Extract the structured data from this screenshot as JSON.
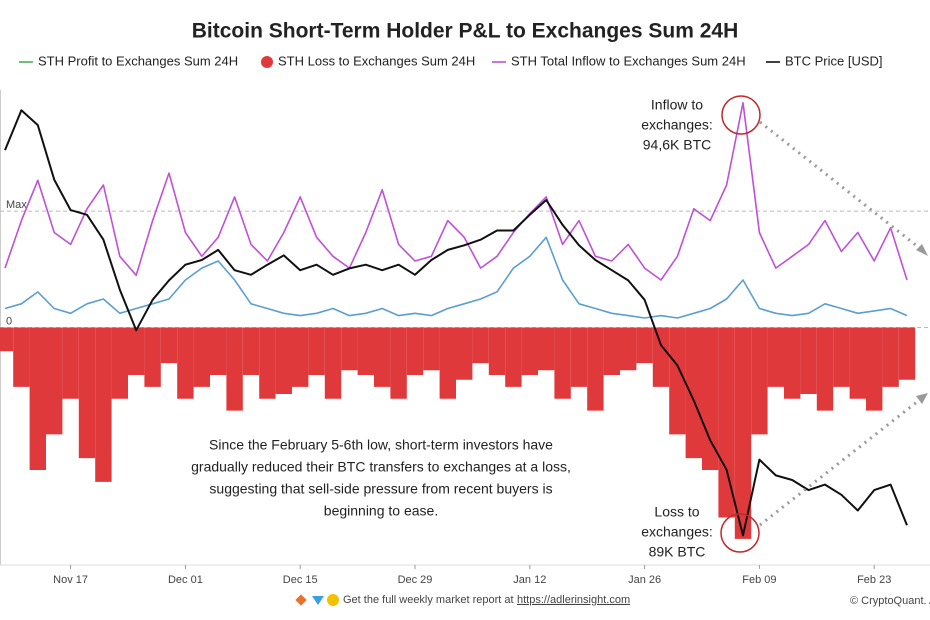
{
  "chart_data": {
    "type": "line",
    "title": "Bitcoin Short-Term Holder P&L to Exchanges Sum 24H",
    "categories": [
      null,
      null,
      null,
      null,
      "Nov 17",
      null,
      null,
      null,
      null,
      null,
      null,
      "Dec 01",
      null,
      null,
      null,
      null,
      null,
      null,
      "Dec 15",
      null,
      null,
      null,
      null,
      null,
      null,
      "Dec 29",
      null,
      null,
      null,
      null,
      null,
      null,
      "Jan 12",
      null,
      null,
      null,
      null,
      null,
      null,
      "Jan 26",
      null,
      null,
      null,
      null,
      null,
      null,
      "Feb 09",
      null,
      null,
      null,
      null,
      null,
      null,
      "Feb 23",
      null,
      null
    ],
    "ylim": [
      -100000,
      100000
    ],
    "yticks": [
      {
        "value": 49000,
        "label": "Max"
      },
      0
    ],
    "y2lim": [
      56800,
      108200
    ],
    "grid": true,
    "series": [
      {
        "name": "STH Profit to Exchanges Sum 24H",
        "color": "#5a9fd0",
        "legend_color": "#4caf50",
        "values": [
          8000,
          10000,
          15000,
          8000,
          6000,
          10000,
          12000,
          6000,
          8000,
          10000,
          12000,
          20000,
          25000,
          28000,
          20000,
          10000,
          8000,
          6000,
          5000,
          6000,
          8000,
          5000,
          6000,
          8000,
          5000,
          6000,
          5000,
          8000,
          10000,
          12000,
          15000,
          25000,
          30000,
          38000,
          20000,
          10000,
          8000,
          6000,
          5000,
          4000,
          5000,
          4000,
          6000,
          8000,
          12000,
          20000,
          8000,
          6000,
          5000,
          6000,
          10000,
          8000,
          6000,
          7000,
          8000,
          5000
        ]
      },
      {
        "name": "STH Loss to Exchanges Sum 24H",
        "color": "#e0393b",
        "values": [
          -10000,
          -25000,
          -60000,
          -45000,
          -30000,
          -55000,
          -65000,
          -30000,
          -20000,
          -25000,
          -15000,
          -30000,
          -25000,
          -20000,
          -35000,
          -20000,
          -30000,
          -28000,
          -25000,
          -20000,
          -30000,
          -18000,
          -20000,
          -25000,
          -30000,
          -20000,
          -18000,
          -30000,
          -22000,
          -15000,
          -20000,
          -25000,
          -20000,
          -18000,
          -30000,
          -25000,
          -35000,
          -20000,
          -18000,
          -15000,
          -25000,
          -45000,
          -55000,
          -60000,
          -80000,
          -89000,
          -45000,
          -25000,
          -30000,
          -28000,
          -35000,
          -25000,
          -30000,
          -35000,
          -25000,
          -22000
        ]
      },
      {
        "name": "STH Total Inflow to Exchanges Sum 24H",
        "color": "#c050d8",
        "values": [
          25000,
          45000,
          62000,
          40000,
          35000,
          50000,
          60000,
          30000,
          22000,
          45000,
          65000,
          40000,
          30000,
          38000,
          55000,
          35000,
          28000,
          40000,
          55000,
          38000,
          30000,
          25000,
          40000,
          58000,
          35000,
          28000,
          30000,
          45000,
          38000,
          25000,
          30000,
          40000,
          48000,
          55000,
          35000,
          45000,
          30000,
          28000,
          35000,
          25000,
          20000,
          30000,
          50000,
          45000,
          60000,
          94600,
          40000,
          25000,
          30000,
          35000,
          45000,
          32000,
          40000,
          28000,
          42000,
          20000
        ]
      },
      {
        "name": "BTC Price [USD]",
        "color": "#111111",
        "axis": "y2",
        "values": [
          101700,
          106000,
          104400,
          98500,
          95200,
          94700,
          92000,
          86600,
          82200,
          85500,
          87600,
          89300,
          89800,
          90900,
          88700,
          88200,
          89300,
          90300,
          88700,
          89300,
          88200,
          88900,
          89300,
          88700,
          89300,
          88200,
          89800,
          90900,
          91400,
          92000,
          93000,
          93000,
          94700,
          96300,
          93600,
          91400,
          89800,
          88700,
          87600,
          85500,
          80600,
          78400,
          74600,
          70300,
          67100,
          60000,
          68200,
          66500,
          66000,
          64900,
          65500,
          64400,
          62700,
          64900,
          65500,
          61100
        ]
      }
    ],
    "annotations": [
      {
        "lines": [
          "Inflow to",
          "exchanges:",
          "94,6K BTC"
        ]
      },
      {
        "lines": [
          "Loss to",
          "exchanges:",
          "89K BTC"
        ]
      },
      {
        "lines": [
          "Since the February 5-6th low, short-term investors have",
          "gradually reduced their BTC transfers to exchanges at a loss,",
          "suggesting that sell-side pressure from recent buyers is",
          "beginning to ease."
        ]
      }
    ],
    "footer": {
      "text": "Get the full weekly market report at",
      "link": "https://adlerinsight.com",
      "credit": "© CryptoQuant. All"
    }
  }
}
